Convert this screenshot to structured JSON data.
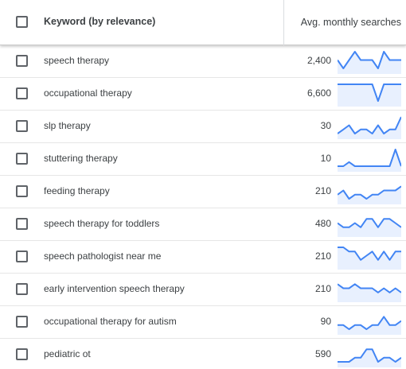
{
  "header": {
    "keyword_label": "Keyword (by relevance)",
    "avg_label": "Avg. monthly searches"
  },
  "colors": {
    "spark_line": "#4285f4",
    "spark_fill": "#e8f0fe"
  },
  "rows": [
    {
      "keyword": "speech therapy",
      "volume": "2,400",
      "trend": [
        3,
        1,
        3,
        5,
        3,
        3,
        3,
        1,
        5,
        3,
        3,
        3
      ]
    },
    {
      "keyword": "occupational therapy",
      "volume": "6,600",
      "trend": [
        5,
        5,
        5,
        5,
        5,
        5,
        5,
        1,
        5,
        5,
        5,
        5
      ]
    },
    {
      "keyword": "slp therapy",
      "volume": "30",
      "trend": [
        1,
        2,
        3,
        1,
        2,
        2,
        1,
        3,
        1,
        2,
        2,
        5
      ]
    },
    {
      "keyword": "stuttering therapy",
      "volume": "10",
      "trend": [
        1,
        1,
        2,
        1,
        1,
        1,
        1,
        1,
        1,
        1,
        5,
        1
      ]
    },
    {
      "keyword": "feeding therapy",
      "volume": "210",
      "trend": [
        2,
        3,
        1,
        2,
        2,
        1,
        2,
        2,
        3,
        3,
        3,
        4
      ]
    },
    {
      "keyword": "speech therapy for toddlers",
      "volume": "480",
      "trend": [
        3,
        2,
        2,
        3,
        2,
        4,
        4,
        2,
        4,
        4,
        3,
        2
      ]
    },
    {
      "keyword": "speech pathologist near me",
      "volume": "210",
      "trend": [
        5,
        5,
        4,
        4,
        2,
        3,
        4,
        2,
        4,
        2,
        4,
        4
      ]
    },
    {
      "keyword": "early intervention speech therapy",
      "volume": "210",
      "trend": [
        4,
        3,
        3,
        4,
        3,
        3,
        3,
        2,
        3,
        2,
        3,
        2
      ]
    },
    {
      "keyword": "occupational therapy for autism",
      "volume": "90",
      "trend": [
        2,
        2,
        1,
        2,
        2,
        1,
        2,
        2,
        4,
        2,
        2,
        3
      ]
    },
    {
      "keyword": "pediatric ot",
      "volume": "590",
      "trend": [
        1,
        1,
        1,
        2,
        2,
        4,
        4,
        1,
        2,
        2,
        1,
        2
      ]
    }
  ]
}
